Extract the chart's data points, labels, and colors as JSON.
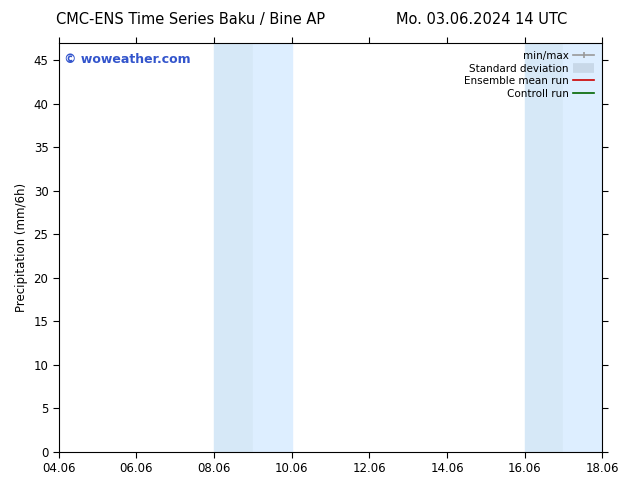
{
  "title_left": "CMC-ENS Time Series Baku / Bine AP",
  "title_right": "Mo. 03.06.2024 14 UTC",
  "ylabel": "Precipitation (mm/6h)",
  "watermark": "© woweather.com",
  "background_color": "#ffffff",
  "plot_bg_color": "#ffffff",
  "x_ticks": [
    "04.06",
    "06.06",
    "08.06",
    "10.06",
    "12.06",
    "14.06",
    "16.06",
    "18.06"
  ],
  "x_tick_positions": [
    0,
    2,
    4,
    6,
    8,
    10,
    12,
    14
  ],
  "ylim": [
    0,
    47
  ],
  "y_ticks": [
    0,
    5,
    10,
    15,
    20,
    25,
    30,
    35,
    40,
    45
  ],
  "shade_regions": [
    {
      "x_start": 4,
      "x_end": 5,
      "color": "#ddeeff"
    },
    {
      "x_start": 5,
      "x_end": 6,
      "color": "#ccd9ee"
    },
    {
      "x_start": 12,
      "x_end": 13,
      "color": "#ddeeff"
    },
    {
      "x_start": 13,
      "x_end": 14,
      "color": "#ccd9ee"
    }
  ],
  "legend_items": [
    {
      "label": "min/max",
      "color": "#aaaaaa",
      "lw": 1.5
    },
    {
      "label": "Standard deviation",
      "color": "#c5d8ea",
      "lw": 7
    },
    {
      "label": "Ensemble mean run",
      "color": "#cc0000",
      "lw": 1.2
    },
    {
      "label": "Controll run",
      "color": "#006600",
      "lw": 1.2
    }
  ],
  "watermark_color": "#3355cc",
  "title_fontsize": 10.5,
  "tick_fontsize": 8.5,
  "ylabel_fontsize": 8.5,
  "legend_fontsize": 7.5
}
